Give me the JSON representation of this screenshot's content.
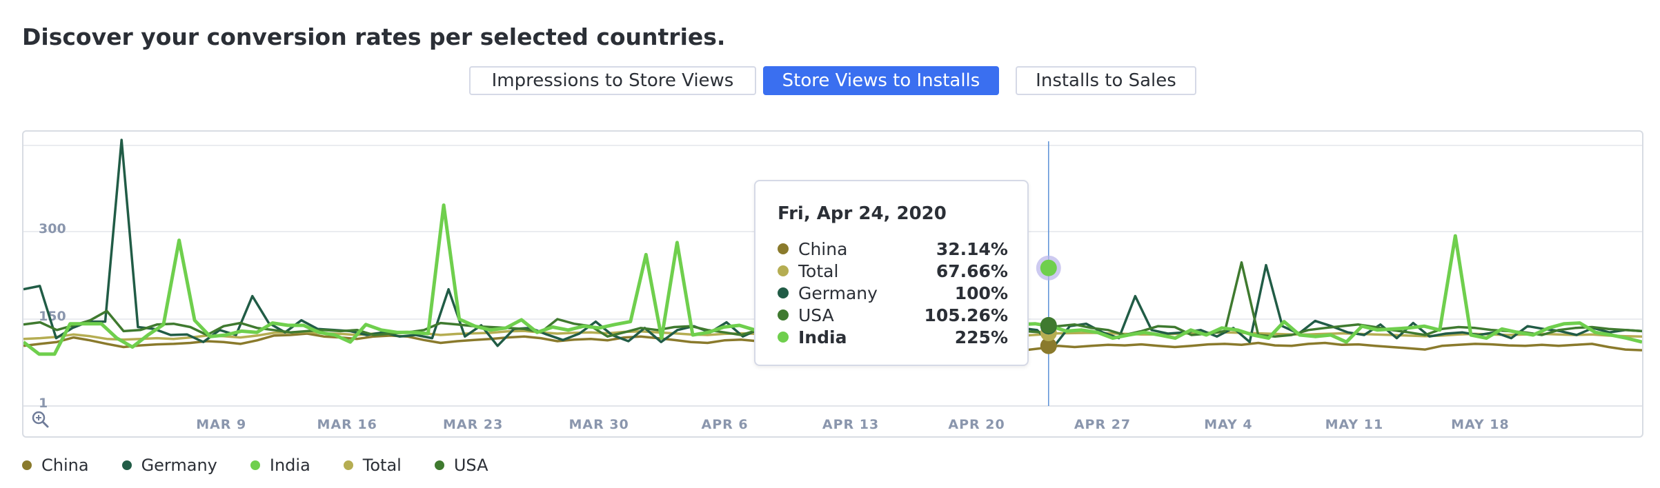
{
  "page_title": "Discover your conversion rates per selected countries.",
  "tabs": [
    {
      "label": "Impressions to Store Views",
      "active": false
    },
    {
      "label": "Store Views to Installs",
      "active": true
    },
    {
      "label": "Installs to Sales",
      "active": false
    }
  ],
  "zoom_icon": "zoom-in-icon",
  "chart_data": {
    "type": "line",
    "yscale": "log",
    "y_ticks": [
      1,
      150,
      300
    ],
    "x_tick_labels": [
      "MAR 9",
      "MAR 16",
      "MAR 23",
      "MAR 30",
      "APR 6",
      "APR 13",
      "APR 20",
      "APR 27",
      "MAY 4",
      "MAY 11",
      "MAY 18"
    ],
    "x_tick_dates": [
      "2020-03-09",
      "2020-03-16",
      "2020-03-23",
      "2020-03-30",
      "2020-04-06",
      "2020-04-13",
      "2020-04-20",
      "2020-04-27",
      "2020-05-04",
      "2020-05-11",
      "2020-05-18"
    ],
    "x_start": "2020-02-27",
    "x_end": "2020-05-27",
    "grid": true,
    "legend_position": "bottom-left",
    "series": [
      {
        "name": "China",
        "color": "#8a7a2c",
        "values": [
          32,
          36,
          40,
          52,
          44,
          36,
          30,
          33,
          35,
          36,
          38,
          42,
          40,
          36,
          44,
          58,
          60,
          65,
          55,
          52,
          48,
          55,
          58,
          55,
          45,
          38,
          42,
          45,
          48,
          52,
          55,
          50,
          42,
          46,
          48,
          44,
          52,
          55,
          50,
          45,
          40,
          38,
          44,
          46,
          42,
          48,
          52,
          55,
          50,
          45,
          40,
          36,
          34,
          33,
          34,
          35,
          32,
          30,
          28,
          26,
          25,
          28,
          32,
          30,
          32,
          34,
          33,
          35,
          32,
          30,
          32,
          35,
          36,
          34,
          38,
          33,
          32,
          36,
          38,
          34,
          35,
          32,
          30,
          28,
          26,
          32,
          34,
          36,
          35,
          33,
          32,
          34,
          32,
          34,
          36,
          30,
          26,
          25
        ]
      },
      {
        "name": "Total",
        "color": "#b5ad52",
        "values": [
          48,
          50,
          54,
          62,
          56,
          48,
          46,
          48,
          50,
          48,
          52,
          58,
          56,
          52,
          58,
          68,
          70,
          72,
          66,
          64,
          60,
          65,
          70,
          72,
          66,
          60,
          64,
          66,
          68,
          74,
          76,
          70,
          65,
          68,
          70,
          66,
          72,
          74,
          70,
          66,
          62,
          60,
          64,
          66,
          64,
          66,
          68,
          70,
          68,
          66,
          64,
          62,
          60,
          62,
          64,
          62,
          58,
          56,
          54,
          56,
          58,
          62,
          66,
          67,
          68,
          66,
          64,
          62,
          62,
          64,
          66,
          68,
          70,
          68,
          66,
          64,
          62,
          62,
          64,
          66,
          64,
          62,
          60,
          58,
          56,
          58,
          62,
          64,
          62,
          60,
          62,
          64,
          62,
          60,
          62,
          58,
          56,
          55
        ]
      },
      {
        "name": "Germany",
        "color": "#215c46",
        "values": [
          190,
          195,
          50,
          90,
          130,
          130,
          620,
          95,
          85,
          60,
          62,
          40,
          80,
          60,
          180,
          120,
          70,
          140,
          85,
          80,
          75,
          60,
          70,
          55,
          60,
          50,
          190,
          55,
          105,
          32,
          85,
          90,
          62,
          45,
          65,
          130,
          60,
          42,
          90,
          40,
          80,
          100,
          70,
          125,
          55,
          85,
          70,
          40,
          60,
          90,
          50,
          70,
          110,
          60,
          90,
          40,
          70,
          55,
          40,
          100,
          45,
          90,
          80,
          30,
          100,
          115,
          70,
          50,
          180,
          80,
          65,
          70,
          80,
          55,
          90,
          40,
          230,
          100,
          65,
          135,
          100,
          70,
          60,
          110,
          50,
          120,
          55,
          65,
          70,
          60,
          70,
          50,
          100,
          85,
          75,
          60,
          90,
          70,
          80,
          75
        ]
      },
      {
        "name": "USA",
        "color": "#3f7a2f",
        "values": [
          110,
          125,
          80,
          105,
          140,
          160,
          75,
          80,
          110,
          115,
          95,
          60,
          100,
          120,
          90,
          80,
          70,
          75,
          80,
          75,
          80,
          60,
          65,
          70,
          80,
          120,
          110,
          100,
          95,
          90,
          85,
          70,
          150,
          115,
          100,
          55,
          70,
          90,
          80,
          95,
          100,
          80,
          70,
          60,
          80,
          90,
          70,
          100,
          60,
          70,
          80,
          60,
          70,
          60,
          50,
          55,
          60,
          70,
          80,
          80,
          75,
          70,
          100,
          110,
          90,
          80,
          60,
          75,
          100,
          95,
          60,
          65,
          75,
          235,
          60,
          55,
          60,
          80,
          90,
          100,
          110,
          95,
          80,
          70,
          60,
          85,
          95,
          90,
          80,
          75,
          70,
          60,
          80,
          90,
          95,
          85,
          80,
          75
        ]
      },
      {
        "name": "India",
        "color": "#6fcf4d",
        "values": [
          40,
          20,
          20,
          115,
          115,
          115,
          50,
          30,
          60,
          110,
          280,
          140,
          55,
          60,
          75,
          70,
          120,
          105,
          105,
          70,
          60,
          40,
          110,
          80,
          70,
          70,
          65,
          370,
          150,
          100,
          80,
          90,
          145,
          70,
          95,
          80,
          100,
          90,
          110,
          130,
          250,
          50,
          275,
          60,
          70,
          95,
          105,
          80,
          50,
          70,
          60,
          90,
          70,
          80,
          90,
          100,
          80,
          60,
          80,
          60,
          225,
          100,
          175,
          50,
          110,
          115,
          100,
          75,
          80,
          70,
          50,
          60,
          70,
          60,
          50,
          80,
          60,
          90,
          80,
          60,
          50,
          130,
          60,
          55,
          60,
          40,
          100,
          80,
          85,
          90,
          100,
          80,
          290,
          60,
          50,
          85,
          70,
          60,
          90,
          115,
          120,
          70,
          60,
          50,
          40
        ]
      }
    ]
  },
  "tooltip": {
    "date": "Fri, Apr 24, 2020",
    "rows": [
      {
        "name": "China",
        "value": "32.14%",
        "color": "#8a7a2c"
      },
      {
        "name": "Total",
        "value": "67.66%",
        "color": "#b5ad52"
      },
      {
        "name": "Germany",
        "value": "100%",
        "color": "#215c46"
      },
      {
        "name": "USA",
        "value": "105.26%",
        "color": "#3f7a2f"
      },
      {
        "name": "India",
        "value": "225%",
        "color": "#6fcf4d"
      }
    ]
  },
  "legend": [
    {
      "name": "China",
      "color": "#8a7a2c"
    },
    {
      "name": "Germany",
      "color": "#215c46"
    },
    {
      "name": "India",
      "color": "#6fcf4d"
    },
    {
      "name": "Total",
      "color": "#b5ad52"
    },
    {
      "name": "USA",
      "color": "#3f7a2f"
    }
  ],
  "hover_date": "2020-04-24"
}
